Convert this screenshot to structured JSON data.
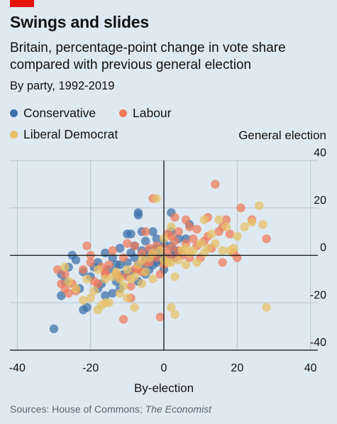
{
  "header": {
    "title": "Swings and slides",
    "subtitle": "Britain, percentage-point change in vote share compared with previous general election",
    "subsubtitle": "By party, 1992-2019"
  },
  "legend": [
    {
      "name": "Conservative",
      "color": "#3d6fa8"
    },
    {
      "name": "Labour",
      "color": "#ef7a5a"
    },
    {
      "name": "Liberal Democrat",
      "color": "#e6c065"
    }
  ],
  "footer": {
    "source": "Sources: House of Commons;",
    "source_italic": "The Economist"
  },
  "chart_data": {
    "type": "scatter",
    "xlabel": "By-election",
    "ylabel": "General election",
    "xlim": [
      -42,
      42
    ],
    "ylim": [
      -40,
      40
    ],
    "xticks": [
      "-40",
      "-20",
      "0",
      "20",
      "40"
    ],
    "yticks": [
      "40",
      "20",
      "0",
      "-20",
      "-40"
    ],
    "grid": true,
    "legend_position": "top-left",
    "series": [
      {
        "name": "Conservative",
        "color": "#3d6fa8",
        "points": [
          [
            -30,
            -31
          ],
          [
            -28,
            -8
          ],
          [
            -28,
            -17
          ],
          [
            -27,
            -11
          ],
          [
            -26,
            -5
          ],
          [
            -25,
            0
          ],
          [
            -24,
            -2
          ],
          [
            -23,
            -14
          ],
          [
            -22,
            -23
          ],
          [
            -21,
            -22
          ],
          [
            -20,
            -9
          ],
          [
            -19,
            -5
          ],
          [
            -18,
            -3
          ],
          [
            -17,
            -12
          ],
          [
            -16,
            -17
          ],
          [
            -16,
            1
          ],
          [
            -15,
            -6
          ],
          [
            -14,
            -1
          ],
          [
            -13,
            -11
          ],
          [
            -12,
            -14
          ],
          [
            -12,
            -4
          ],
          [
            -12,
            3
          ],
          [
            -11,
            -8
          ],
          [
            -10,
            -3
          ],
          [
            -9,
            -7
          ],
          [
            -9,
            1
          ],
          [
            -9,
            9
          ],
          [
            -8,
            -1
          ],
          [
            -8,
            4
          ],
          [
            -7,
            -11
          ],
          [
            -7,
            18
          ],
          [
            -7,
            -4
          ],
          [
            -6,
            -5
          ],
          [
            -6,
            2
          ],
          [
            -5,
            -8
          ],
          [
            -5,
            6
          ],
          [
            -5,
            -2
          ],
          [
            -4,
            0
          ],
          [
            -4,
            -6
          ],
          [
            -4,
            2
          ],
          [
            -3,
            10
          ],
          [
            -3,
            -4
          ],
          [
            -3,
            -1
          ],
          [
            -2,
            -3
          ],
          [
            -2,
            7
          ],
          [
            -2,
            3
          ],
          [
            -1,
            -2
          ],
          [
            -1,
            1
          ],
          [
            0,
            -6
          ],
          [
            0,
            5
          ],
          [
            1,
            -1
          ],
          [
            2,
            4
          ],
          [
            2,
            10
          ],
          [
            2,
            18
          ],
          [
            3,
            2
          ],
          [
            3,
            -1
          ],
          [
            4,
            0
          ],
          [
            4,
            7
          ],
          [
            6,
            7
          ],
          [
            7,
            13
          ],
          [
            -7,
            17
          ],
          [
            -10,
            9
          ],
          [
            -13,
            -4
          ],
          [
            -18,
            -14
          ],
          [
            -22,
            -7
          ],
          [
            -6,
            10
          ],
          [
            3,
            1
          ],
          [
            -14,
            -16
          ]
        ]
      },
      {
        "name": "Labour",
        "color": "#ef7a5a",
        "points": [
          [
            -29,
            -6
          ],
          [
            -28,
            -12
          ],
          [
            -27,
            -8
          ],
          [
            -26,
            -16
          ],
          [
            -25,
            -12
          ],
          [
            -24,
            -15
          ],
          [
            -22,
            -6
          ],
          [
            -21,
            4
          ],
          [
            -20,
            -3
          ],
          [
            -19,
            -11
          ],
          [
            -18,
            -12
          ],
          [
            -17,
            -5
          ],
          [
            -16,
            -8
          ],
          [
            -15,
            -4
          ],
          [
            -14,
            2
          ],
          [
            -13,
            -8
          ],
          [
            -12,
            -9
          ],
          [
            -11,
            -27
          ],
          [
            -11,
            -1
          ],
          [
            -10,
            5
          ],
          [
            -10,
            -9
          ],
          [
            -9,
            -13
          ],
          [
            -8,
            -6
          ],
          [
            -8,
            4
          ],
          [
            -7,
            -6
          ],
          [
            -6,
            -7
          ],
          [
            -6,
            1
          ],
          [
            -5,
            -3
          ],
          [
            -5,
            10
          ],
          [
            -4,
            -3
          ],
          [
            -4,
            3
          ],
          [
            -3,
            24
          ],
          [
            -3,
            0
          ],
          [
            -2,
            -1
          ],
          [
            -2,
            4
          ],
          [
            -1,
            -8
          ],
          [
            -1,
            -26
          ],
          [
            0,
            3
          ],
          [
            0,
            -4
          ],
          [
            1,
            9
          ],
          [
            1,
            0
          ],
          [
            2,
            3
          ],
          [
            2,
            8
          ],
          [
            3,
            6
          ],
          [
            3,
            -1
          ],
          [
            4,
            10
          ],
          [
            4,
            2
          ],
          [
            5,
            0
          ],
          [
            6,
            15
          ],
          [
            6,
            5
          ],
          [
            7,
            -1
          ],
          [
            8,
            7
          ],
          [
            9,
            4
          ],
          [
            9,
            11
          ],
          [
            10,
            -1
          ],
          [
            11,
            6
          ],
          [
            12,
            8
          ],
          [
            12,
            16
          ],
          [
            13,
            3
          ],
          [
            14,
            30
          ],
          [
            15,
            10
          ],
          [
            16,
            12
          ],
          [
            16,
            -3
          ],
          [
            17,
            15
          ],
          [
            18,
            9
          ],
          [
            19,
            1
          ],
          [
            20,
            -1
          ],
          [
            21,
            20
          ],
          [
            24,
            15
          ],
          [
            28,
            7
          ],
          [
            -16,
            -7
          ],
          [
            -9,
            -18
          ],
          [
            3,
            16
          ],
          [
            7,
            12
          ],
          [
            -20,
            0
          ],
          [
            -27,
            -14
          ]
        ]
      },
      {
        "name": "Liberal Democrat",
        "color": "#e6c065",
        "points": [
          [
            -27,
            -5
          ],
          [
            -26,
            -11
          ],
          [
            -24,
            -14
          ],
          [
            -22,
            -19
          ],
          [
            -21,
            -10
          ],
          [
            -20,
            -18
          ],
          [
            -19,
            -15
          ],
          [
            -18,
            -23
          ],
          [
            -17,
            -21
          ],
          [
            -16,
            -10
          ],
          [
            -16,
            -20
          ],
          [
            -15,
            -20
          ],
          [
            -14,
            -9
          ],
          [
            -13,
            -7
          ],
          [
            -12,
            -16
          ],
          [
            -12,
            -10
          ],
          [
            -11,
            -13
          ],
          [
            -10,
            -18
          ],
          [
            -10,
            -6
          ],
          [
            -9,
            -10
          ],
          [
            -8,
            -9
          ],
          [
            -7,
            -4
          ],
          [
            -6,
            -12
          ],
          [
            -6,
            -2
          ],
          [
            -5,
            -7
          ],
          [
            -4,
            -1
          ],
          [
            -3,
            -10
          ],
          [
            -3,
            1
          ],
          [
            -2,
            24
          ],
          [
            -1,
            2
          ],
          [
            0,
            -2
          ],
          [
            0,
            7
          ],
          [
            1,
            -3
          ],
          [
            2,
            -22
          ],
          [
            2,
            -3
          ],
          [
            3,
            -25
          ],
          [
            3,
            -9
          ],
          [
            4,
            -2
          ],
          [
            5,
            2
          ],
          [
            6,
            -4
          ],
          [
            7,
            1
          ],
          [
            8,
            2
          ],
          [
            9,
            -3
          ],
          [
            10,
            5
          ],
          [
            11,
            1
          ],
          [
            12,
            3
          ],
          [
            13,
            9
          ],
          [
            14,
            5
          ],
          [
            15,
            15
          ],
          [
            16,
            2
          ],
          [
            17,
            12
          ],
          [
            18,
            2
          ],
          [
            19,
            3
          ],
          [
            20,
            8
          ],
          [
            22,
            12
          ],
          [
            24,
            14
          ],
          [
            26,
            21
          ],
          [
            27,
            13
          ],
          [
            28,
            -22
          ],
          [
            -18,
            -6
          ],
          [
            -8,
            -22
          ],
          [
            6,
            3
          ],
          [
            11,
            15
          ],
          [
            2,
            12
          ]
        ]
      }
    ]
  }
}
